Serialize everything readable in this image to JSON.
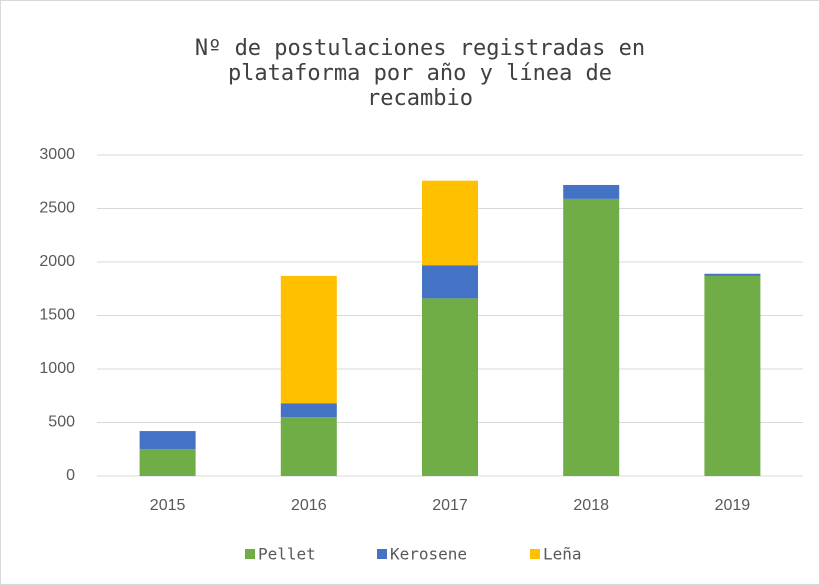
{
  "chart_data": {
    "type": "stacked_bar",
    "title": "Nº de postulaciones registradas en plataforma por año y línea de recambio",
    "categories": [
      "2015",
      "2016",
      "2017",
      "2018",
      "2019"
    ],
    "series": [
      {
        "name": "Pellet",
        "color": "#70ad47",
        "values": [
          250,
          550,
          1660,
          2590,
          1870
        ]
      },
      {
        "name": "Kerosene",
        "color": "#4472c4",
        "values": [
          170,
          130,
          310,
          130,
          20
        ]
      },
      {
        "name": "Leña",
        "color": "#ffc000",
        "values": [
          0,
          1190,
          790,
          0,
          0
        ]
      }
    ],
    "ylim": [
      0,
      3000
    ],
    "yticks": [
      0,
      500,
      1000,
      1500,
      2000,
      2500,
      3000
    ],
    "grid": true,
    "legend": "bottom"
  }
}
